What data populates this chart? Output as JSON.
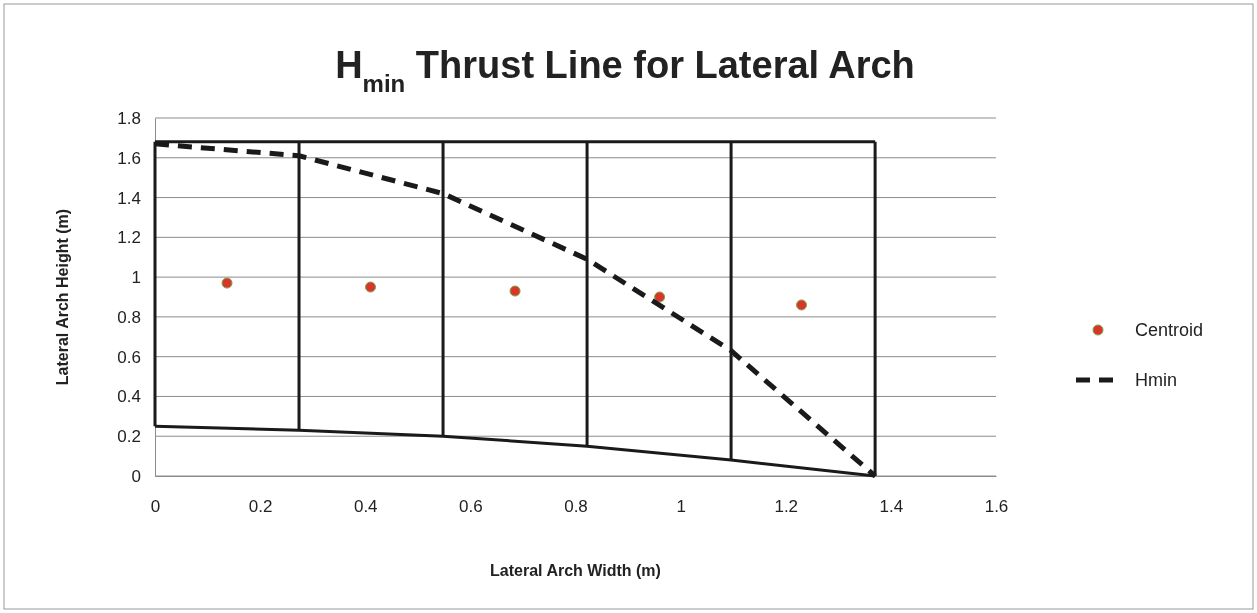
{
  "chart_data": {
    "type": "line",
    "title": "H$_{min}$ Thrust Line for Lateral Arch",
    "xlabel": "Lateral Arch Width (m)",
    "ylabel": "Lateral  Arch Height (m)",
    "xlim": [
      0,
      1.6
    ],
    "xticks": [
      0,
      0.2,
      0.4,
      0.6,
      0.8,
      1,
      1.2,
      1.4,
      1.6
    ],
    "ylim": [
      0,
      1.8
    ],
    "yticks": [
      0,
      0.2,
      0.4,
      0.6,
      0.8,
      1,
      1.2,
      1.4,
      1.6,
      1.8
    ],
    "grid": "y",
    "legend": "right",
    "series": [
      {
        "name": "Centroid",
        "type": "scatter",
        "color": "#d9352a",
        "marker": "circle",
        "x": [
          0.137,
          0.41,
          0.685,
          0.96,
          1.23
        ],
        "values": [
          0.97,
          0.95,
          0.93,
          0.9,
          0.86
        ]
      },
      {
        "name": "Hmin",
        "color": "#1a1a1a",
        "line_style": "dashed",
        "marker": "none",
        "x": [
          0,
          0.274,
          0.548,
          0.822,
          1.096,
          1.37
        ],
        "values": [
          1.67,
          1.61,
          1.42,
          1.09,
          0.63,
          0
        ]
      },
      {
        "color": "#1a1a1a",
        "line_style": "solid",
        "marker": "none",
        "x": [
          0,
          1.37
        ],
        "values": [
          1.68,
          1.68
        ]
      },
      {
        "color": "#1a1a1a",
        "line_style": "solid",
        "marker": "none",
        "x": [
          0,
          0.274,
          0.548,
          0.822,
          1.096,
          1.37
        ],
        "values": [
          0.25,
          0.23,
          0.2,
          0.15,
          0.08,
          0
        ]
      },
      {
        "color": "#1a1a1a",
        "line_style": "solid",
        "marker": "none",
        "x": [
          0,
          0
        ],
        "values": [
          0.25,
          1.68
        ]
      },
      {
        "color": "#1a1a1a",
        "line_style": "solid",
        "marker": "none",
        "x": [
          0.274,
          0.274
        ],
        "values": [
          0.23,
          1.68
        ]
      },
      {
        "color": "#1a1a1a",
        "line_style": "solid",
        "marker": "none",
        "x": [
          0.548,
          0.548
        ],
        "values": [
          0.2,
          1.68
        ]
      },
      {
        "color": "#1a1a1a",
        "line_style": "solid",
        "marker": "none",
        "x": [
          0.822,
          0.822
        ],
        "values": [
          0.15,
          1.68
        ]
      },
      {
        "color": "#1a1a1a",
        "line_style": "solid",
        "marker": "none",
        "x": [
          1.096,
          1.096
        ],
        "values": [
          0.08,
          1.68
        ]
      },
      {
        "color": "#1a1a1a",
        "line_style": "solid",
        "marker": "none",
        "x": [
          1.37,
          1.37
        ],
        "values": [
          0,
          1.68
        ]
      }
    ]
  }
}
